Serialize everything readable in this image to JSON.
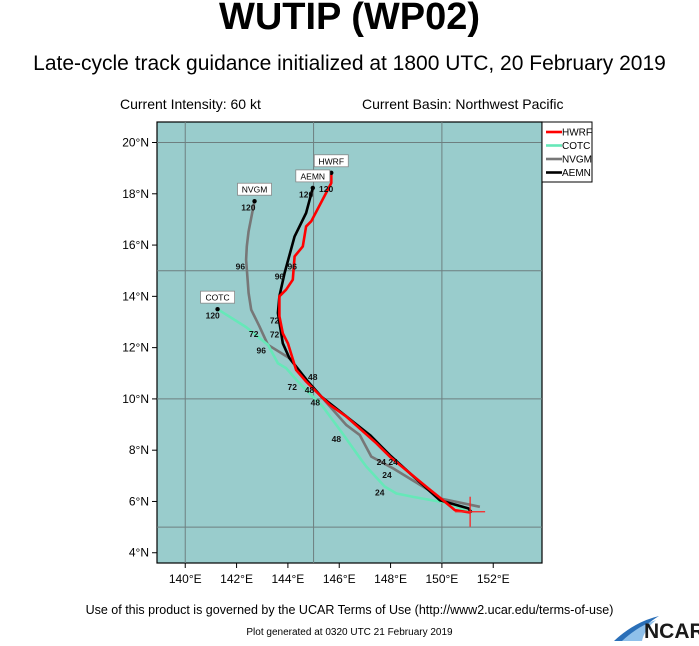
{
  "header": {
    "title": "WUTIP (WP02)",
    "subtitle": "Late-cycle track guidance initialized at 1800 UTC, 20 February 2019",
    "current_intensity": "Current Intensity: 60 kt",
    "current_basin": "Current Basin: Northwest Pacific"
  },
  "map": {
    "ocean_color": "#99cccc",
    "lon_range": [
      138.9,
      153.9
    ],
    "lat_range": [
      3.6,
      20.8
    ],
    "lon_ticks": [
      "140°E",
      "142°E",
      "144°E",
      "146°E",
      "148°E",
      "150°E",
      "152°E"
    ],
    "lon_tick_values": [
      140,
      142,
      144,
      146,
      148,
      150,
      152
    ],
    "lat_ticks": [
      "4°N",
      "6°N",
      "8°N",
      "10°N",
      "12°N",
      "14°N",
      "16°N",
      "18°N",
      "20°N"
    ],
    "lat_tick_values": [
      4,
      6,
      8,
      10,
      12,
      14,
      16,
      18,
      20
    ],
    "grid_spacing_deg": 5,
    "current_position": {
      "lon": 151.1,
      "lat": 5.6,
      "marker_color": "#ff2020"
    }
  },
  "legend": {
    "placement": "top-right",
    "items": [
      {
        "label": "HWRF",
        "color": "#ff0000"
      },
      {
        "label": "COTC",
        "color": "#66e8b8"
      },
      {
        "label": "NVGM",
        "color": "#777777"
      },
      {
        "label": "AEMN",
        "color": "#000000"
      }
    ]
  },
  "tracks": [
    {
      "model": "NVGM",
      "color": "#777777",
      "points": [
        [
          151.48,
          5.79
        ],
        [
          149.92,
          6.12
        ],
        [
          149.47,
          6.45
        ],
        [
          148.1,
          7.29
        ],
        [
          147.25,
          7.75
        ],
        [
          146.8,
          8.59
        ],
        [
          146.28,
          8.98
        ],
        [
          144.78,
          10.68
        ],
        [
          144.06,
          11.59
        ],
        [
          143.22,
          12.11
        ],
        [
          142.89,
          12.83
        ],
        [
          142.57,
          13.48
        ],
        [
          142.47,
          14.13
        ],
        [
          142.37,
          15.43
        ],
        [
          142.4,
          15.95
        ],
        [
          142.47,
          16.54
        ],
        [
          142.7,
          17.71
        ]
      ],
      "hour_labels": [
        {
          "text": "24",
          "lon": 147.86,
          "lat": 7.03
        },
        {
          "text": "48",
          "lon": 145.07,
          "lat": 9.86
        },
        {
          "text": "72",
          "lon": 142.67,
          "lat": 12.54
        },
        {
          "text": "96",
          "lon": 142.15,
          "lat": 15.17
        },
        {
          "text": "120",
          "lon": 142.46,
          "lat": 17.47
        }
      ]
    },
    {
      "model": "COTC",
      "color": "#66e8b8",
      "points": [
        [
          151.09,
          5.57
        ],
        [
          150.31,
          5.92
        ],
        [
          148.88,
          6.18
        ],
        [
          148.23,
          6.31
        ],
        [
          147.77,
          6.58
        ],
        [
          147.06,
          7.36
        ],
        [
          146.86,
          7.62
        ],
        [
          146.08,
          8.72
        ],
        [
          145.36,
          9.7
        ],
        [
          144.97,
          10.09
        ],
        [
          144.39,
          10.68
        ],
        [
          143.93,
          11.2
        ],
        [
          143.61,
          11.39
        ],
        [
          143.22,
          12.11
        ],
        [
          142.37,
          12.8
        ],
        [
          141.26,
          13.5
        ]
      ],
      "hour_labels": [
        {
          "text": "24",
          "lon": 147.58,
          "lat": 6.34
        },
        {
          "text": "48",
          "lon": 145.89,
          "lat": 8.44
        },
        {
          "text": "72",
          "lon": 144.17,
          "lat": 10.46
        },
        {
          "text": "96",
          "lon": 142.96,
          "lat": 11.88
        },
        {
          "text": "120",
          "lon": 141.07,
          "lat": 13.26
        }
      ]
    },
    {
      "model": "AEMN",
      "color": "#000000",
      "points": [
        [
          151.16,
          5.57
        ],
        [
          151.03,
          5.73
        ],
        [
          149.92,
          6.05
        ],
        [
          147.97,
          7.81
        ],
        [
          147.2,
          8.59
        ],
        [
          145.3,
          10.09
        ],
        [
          144.78,
          10.68
        ],
        [
          144.06,
          11.59
        ],
        [
          143.8,
          12.17
        ],
        [
          143.61,
          13.35
        ],
        [
          143.67,
          14.0
        ],
        [
          143.87,
          14.91
        ],
        [
          144.26,
          16.34
        ],
        [
          144.71,
          17.25
        ],
        [
          144.97,
          18.23
        ]
      ],
      "hour_labels": [
        {
          "text": "24",
          "lon": 147.64,
          "lat": 7.53
        },
        {
          "text": "48",
          "lon": 144.84,
          "lat": 10.07
        },
        {
          "text": "72",
          "lon": 143.48,
          "lat": 13.05
        },
        {
          "text": "96",
          "lon": 143.67,
          "lat": 14.78
        },
        {
          "text": "120",
          "lon": 144.71,
          "lat": 17.97
        }
      ]
    },
    {
      "model": "HWRF",
      "color": "#ff0000",
      "points": [
        [
          151.09,
          5.57
        ],
        [
          150.51,
          5.66
        ],
        [
          149.92,
          6.15
        ],
        [
          149.47,
          6.51
        ],
        [
          147.97,
          7.75
        ],
        [
          147.45,
          8.27
        ],
        [
          146.28,
          9.31
        ],
        [
          145.63,
          9.77
        ],
        [
          145.1,
          10.29
        ],
        [
          144.71,
          10.68
        ],
        [
          144.32,
          11.13
        ],
        [
          144.0,
          12.17
        ],
        [
          143.8,
          12.56
        ],
        [
          143.67,
          13.22
        ],
        [
          143.67,
          14.0
        ],
        [
          143.93,
          14.26
        ],
        [
          144.19,
          14.65
        ],
        [
          144.26,
          15.56
        ],
        [
          144.58,
          15.95
        ],
        [
          144.71,
          16.73
        ],
        [
          144.91,
          16.93
        ],
        [
          145.69,
          18.42
        ],
        [
          145.69,
          18.82
        ]
      ],
      "hour_labels": [
        {
          "text": "24",
          "lon": 147.71,
          "lat": 7.53
        },
        {
          "text": "48",
          "lon": 144.58,
          "lat": 10.46
        },
        {
          "text": "72",
          "lon": 143.48,
          "lat": 12.66
        },
        {
          "text": "96",
          "lon": 144.17,
          "lat": 15.17
        },
        {
          "text": "120",
          "lon": 145.49,
          "lat": 18.58
        }
      ]
    }
  ],
  "footer": {
    "terms": "Use of this product is governed by the UCAR Terms of Use (http://www2.ucar.edu/terms-of-use)",
    "generated": "Plot generated at 0320 UTC   21 February 2019",
    "logo_text": "NCAR"
  }
}
